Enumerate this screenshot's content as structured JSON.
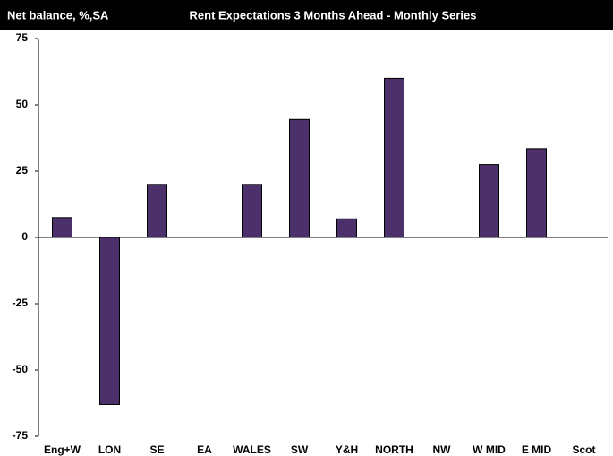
{
  "chart_data": {
    "type": "bar",
    "title": "Rent Expectations 3 Months Ahead - Monthly Series",
    "y_label": "Net balance, %,SA",
    "categories": [
      "Eng+W",
      "LON",
      "SE",
      "EA",
      "WALES",
      "SW",
      "Y&H",
      "NORTH",
      "NW",
      "W MID",
      "E MID",
      "Scot"
    ],
    "values": [
      7.5,
      -63,
      20,
      0,
      20,
      44.5,
      7,
      60,
      0,
      27.5,
      33.5,
      0
    ],
    "color": "#4b3069",
    "ylim": [
      -75,
      75
    ],
    "yticks": [
      -75,
      -50,
      -25,
      0,
      25,
      50,
      75
    ],
    "grid": false
  }
}
